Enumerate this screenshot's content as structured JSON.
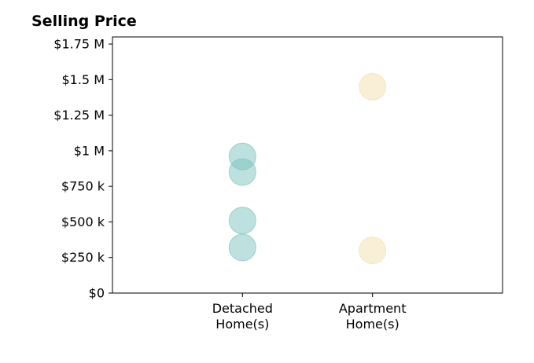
{
  "chart_data": {
    "type": "scatter",
    "title": "Selling Price",
    "xlabel": "",
    "ylabel": "",
    "categories": [
      [
        "Detached",
        "Home(s)"
      ],
      [
        "Apartment",
        "Home(s)"
      ]
    ],
    "xlim": [
      0,
      3
    ],
    "ylim": [
      0,
      1800000
    ],
    "yticks": [
      {
        "value": 0,
        "label": "$0"
      },
      {
        "value": 250000,
        "label": "$250 k"
      },
      {
        "value": 500000,
        "label": "$500 k"
      },
      {
        "value": 750000,
        "label": "$750 k"
      },
      {
        "value": 1000000,
        "label": "$1 M"
      },
      {
        "value": 1250000,
        "label": "$1.25 M"
      },
      {
        "value": 1500000,
        "label": "$1.5 M"
      },
      {
        "value": 1750000,
        "label": "$1.75 M"
      }
    ],
    "grid": false,
    "series": [
      {
        "category": 0,
        "color": "#7cc4bd",
        "values": [
          960000,
          850000,
          510000,
          320000
        ]
      },
      {
        "category": 1,
        "color": "#f3dfae",
        "values": [
          1450000,
          300000
        ]
      }
    ]
  }
}
